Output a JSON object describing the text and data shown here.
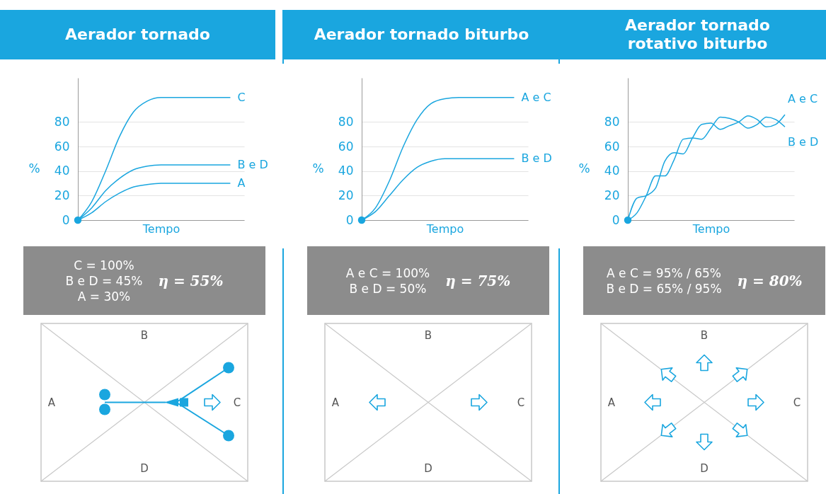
{
  "chart_data": [
    {
      "type": "line",
      "title": "Aerador tornado",
      "xlabel": "Tempo",
      "ylabel": "%",
      "categories": [
        null,
        null,
        null,
        null,
        null,
        null,
        null,
        null,
        null,
        null,
        null,
        null
      ],
      "ylim": [
        0,
        116
      ],
      "yticks": [
        0,
        20,
        40,
        60,
        80
      ],
      "grid": "y",
      "series": [
        {
          "name": "C",
          "color": "#1aa6df",
          "values": [
            0,
            15,
            40,
            68,
            88,
            97,
            100,
            100,
            100,
            100,
            100,
            100
          ]
        },
        {
          "name": "B e D",
          "color": "#1aa6df",
          "values": [
            0,
            10,
            24,
            34,
            41,
            44,
            45,
            45,
            45,
            45,
            45,
            45
          ]
        },
        {
          "name": "A",
          "color": "#1aa6df",
          "values": [
            0,
            6,
            15,
            22,
            27,
            29,
            30,
            30,
            30,
            30,
            30,
            30
          ]
        },
        {
          "type": "scatter",
          "color": "#1aa6df",
          "values": [
            0,
            null,
            null,
            null,
            null,
            null,
            null,
            null,
            null,
            null,
            null,
            null
          ]
        }
      ],
      "annotations": [
        "C = 100%",
        "B e D = 45%",
        "A = 30%",
        "η = 55%"
      ]
    },
    {
      "type": "line",
      "title": "Aerador tornado biturbo",
      "xlabel": "Tempo",
      "ylabel": "%",
      "categories": [
        null,
        null,
        null,
        null,
        null,
        null,
        null,
        null,
        null,
        null,
        null,
        null
      ],
      "ylim": [
        0,
        116
      ],
      "yticks": [
        0,
        20,
        40,
        60,
        80
      ],
      "grid": "y",
      "series": [
        {
          "name": "A e C",
          "color": "#1aa6df",
          "values": [
            0,
            10,
            32,
            60,
            82,
            95,
            99,
            100,
            100,
            100,
            100,
            100
          ]
        },
        {
          "name": "B e D",
          "color": "#1aa6df",
          "values": [
            0,
            7,
            20,
            33,
            43,
            48,
            50,
            50,
            50,
            50,
            50,
            50
          ]
        },
        {
          "type": "scatter",
          "color": "#1aa6df",
          "values": [
            0,
            null,
            null,
            null,
            null,
            null,
            null,
            null,
            null,
            null,
            null,
            null
          ]
        }
      ],
      "annotations": [
        "A e C = 100%",
        "B e D = 50%",
        "η = 75%"
      ]
    },
    {
      "type": "line",
      "title": "Aerador tornado rotativo biturbo",
      "xlabel": "Tempo",
      "ylabel": "%",
      "categories": [
        null,
        null,
        null,
        null,
        null,
        null,
        null,
        null,
        null,
        null,
        null,
        null,
        null,
        null,
        null,
        null,
        null,
        null
      ],
      "ylim": [
        0,
        116
      ],
      "yticks": [
        0,
        20,
        40,
        60,
        80
      ],
      "grid": "y",
      "series": [
        {
          "name": "A e C",
          "color": "#1aa6df",
          "values": [
            0,
            18,
            20,
            26,
            48,
            55,
            54,
            67,
            78,
            79,
            74,
            77,
            80,
            85,
            82,
            76,
            78,
            86
          ]
        },
        {
          "name": "B e D",
          "color": "#1aa6df",
          "values": [
            0,
            6,
            20,
            36,
            36,
            49,
            66,
            67,
            66,
            75,
            84,
            83,
            80,
            75,
            78,
            84,
            82,
            76
          ]
        },
        {
          "type": "scatter",
          "color": "#1aa6df",
          "values": [
            0,
            null,
            null,
            null,
            null,
            null,
            null,
            null,
            null,
            null,
            null,
            null,
            null,
            null,
            null,
            null,
            null,
            null
          ]
        }
      ],
      "annotations": [
        "A e C = 95% / 65%",
        "B e D = 65% / 95%",
        "η = 80%"
      ]
    },
    {
      "type": "other",
      "annotations": [
        "B",
        "A",
        "C",
        "D"
      ]
    },
    {
      "type": "other",
      "annotations": [
        "B",
        "A",
        "C",
        "D"
      ]
    },
    {
      "type": "other",
      "annotations": [
        "B",
        "A",
        "C",
        "D"
      ]
    }
  ]
}
